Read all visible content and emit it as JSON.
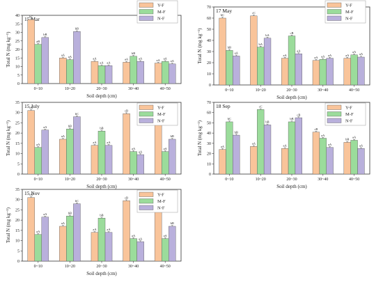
{
  "colors": {
    "Y-F": "#f9c49a",
    "M-F": "#9bdc9b",
    "N-F": "#b9b0dc"
  },
  "chart_data": [
    {
      "type": "bar",
      "title": "15 Mar",
      "xlabel": "Soil depth (cm)",
      "ylabel": "Total N (mg kg⁻¹)",
      "ylim": [
        0,
        40
      ],
      "yticks": [
        0,
        5,
        10,
        15,
        20,
        25,
        30,
        35,
        40
      ],
      "categories": [
        "0~10",
        "10~20",
        "20~30",
        "30~40",
        "40~50"
      ],
      "legend": "top-right",
      "series": [
        {
          "name": "Y-F",
          "values": [
            37.5,
            15,
            13,
            12.5,
            12
          ],
          "labels": [
            "bC",
            "aA",
            "aA",
            "aA",
            "aA"
          ]
        },
        {
          "name": "M-F",
          "values": [
            23,
            14,
            10.5,
            16,
            13
          ],
          "labels": [
            "aB",
            "aA",
            "aA",
            "bB",
            "aA"
          ]
        },
        {
          "name": "N-F",
          "values": [
            27,
            30.5,
            10.5,
            13,
            11.5
          ],
          "labels": [
            "bB",
            "bB",
            "aA",
            "aA",
            "aA"
          ]
        }
      ]
    },
    {
      "type": "bar",
      "title": "17 May",
      "xlabel": "Soil depth (cm)",
      "ylabel": "Total N (mg kg⁻¹)",
      "ylim": [
        0,
        70
      ],
      "yticks": [
        0,
        10,
        20,
        30,
        40,
        50,
        60,
        70
      ],
      "categories": [
        "0~10",
        "10~20",
        "20~30",
        "30~40",
        "40~50"
      ],
      "legend": "top-right",
      "series": [
        {
          "name": "Y-F",
          "values": [
            60,
            62,
            24,
            22,
            24
          ],
          "labels": [
            "bC",
            "cC",
            "aA",
            "aA",
            "aA"
          ]
        },
        {
          "name": "M-F",
          "values": [
            31,
            34,
            44,
            23,
            27
          ],
          "labels": [
            "bB",
            "bA",
            "cB",
            "aA",
            "aA"
          ]
        },
        {
          "name": "N-F",
          "values": [
            26,
            42,
            28,
            24,
            25
          ],
          "labels": [
            "aA",
            "bA",
            "aA",
            "aA",
            "aA"
          ]
        }
      ]
    },
    {
      "type": "bar",
      "title": "15 July",
      "xlabel": "Soil depth (cm)",
      "ylabel": "Total N (mg kg⁻¹)",
      "ylim": [
        0,
        35
      ],
      "yticks": [
        0,
        5,
        10,
        15,
        20,
        25,
        30,
        35
      ],
      "categories": [
        "0~10",
        "10~20",
        "20~30",
        "30~40",
        "40~50"
      ],
      "legend": "top-right",
      "series": [
        {
          "name": "Y-F",
          "values": [
            31,
            17,
            14,
            29.5,
            24
          ],
          "labels": [
            "cB",
            "aA",
            "aA",
            "cB",
            "bB"
          ]
        },
        {
          "name": "M-F",
          "values": [
            13,
            22,
            21,
            11,
            11
          ],
          "labels": [
            "aA",
            "bB",
            "bB",
            "aA",
            "aA"
          ]
        },
        {
          "name": "N-F",
          "values": [
            21.5,
            28,
            14,
            9.5,
            17
          ],
          "labels": [
            "aA",
            "bC",
            "aA",
            "aA",
            "bB"
          ]
        }
      ]
    },
    {
      "type": "bar",
      "title": "18 Sep",
      "xlabel": "Soil depth (cm)",
      "ylabel": "Total N (mg kg⁻¹)",
      "ylim": [
        0,
        70
      ],
      "yticks": [
        0,
        10,
        20,
        30,
        40,
        50,
        60,
        70
      ],
      "categories": [
        "0~10",
        "10~20",
        "20~30",
        "30~40",
        "40~50"
      ],
      "legend": "top-right",
      "series": [
        {
          "name": "Y-F",
          "values": [
            24,
            27,
            25,
            41,
            31
          ],
          "labels": [
            "aA",
            "aA",
            "aA",
            "cB",
            "bB"
          ]
        },
        {
          "name": "M-F",
          "values": [
            51,
            63,
            51,
            35,
            33
          ],
          "labels": [
            "bC",
            "cC",
            "bB",
            "aA",
            "aA"
          ]
        },
        {
          "name": "N-F",
          "values": [
            38,
            48,
            55,
            26,
            25
          ],
          "labels": [
            "bB",
            "bB",
            "cB",
            "aA",
            "aA"
          ]
        }
      ]
    },
    {
      "type": "bar",
      "title": "15 Nov",
      "xlabel": "Soil depth (cm)",
      "ylabel": "Total N (mg kg⁻¹)",
      "ylim": [
        0,
        35
      ],
      "yticks": [
        0,
        5,
        10,
        15,
        20,
        25,
        30,
        35
      ],
      "categories": [
        "0~10",
        "10~20",
        "20~30",
        "30~40",
        "40~50"
      ],
      "legend": "top-right",
      "series": [
        {
          "name": "Y-F",
          "values": [
            31,
            17,
            14,
            29.5,
            24
          ],
          "labels": [
            "cB",
            "aA",
            "aA",
            "cB",
            "bB"
          ]
        },
        {
          "name": "M-F",
          "values": [
            13,
            22,
            21,
            11,
            11
          ],
          "labels": [
            "aA",
            "bB",
            "bB",
            "aA",
            "aA"
          ]
        },
        {
          "name": "N-F",
          "values": [
            21.5,
            28,
            14,
            9.5,
            17
          ],
          "labels": [
            "aA",
            "bC",
            "aA",
            "aA",
            "bB"
          ]
        }
      ]
    }
  ]
}
